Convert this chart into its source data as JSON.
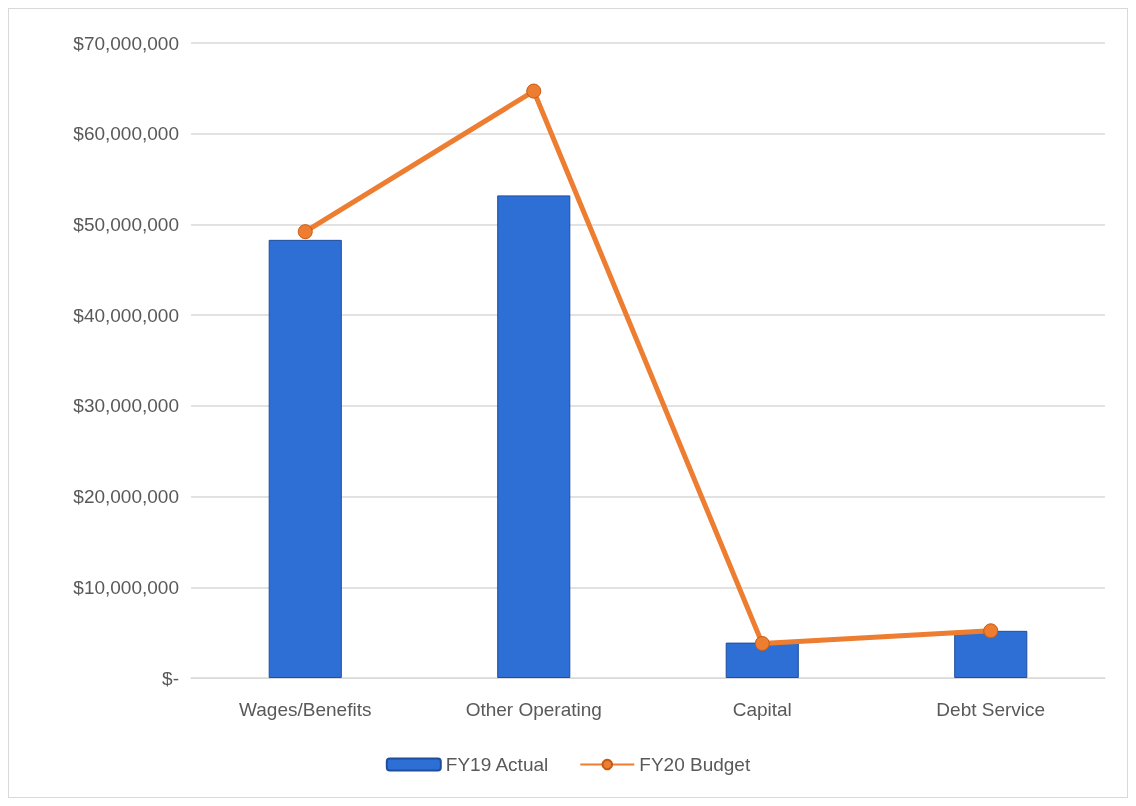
{
  "chart_data": {
    "type": "bar",
    "categories": [
      "Wages/Benefits",
      "Other Operating",
      "Capital",
      "Debt Service"
    ],
    "series": [
      {
        "name": "FY19 Actual",
        "color": "#2e6fd6",
        "values": [
          48300000,
          53200000,
          3900000,
          5200000
        ]
      },
      {
        "name": "FY20 Budget",
        "type": "line",
        "color": "#ed7d31",
        "values": [
          49200000,
          64700000,
          3800000,
          5200000
        ]
      }
    ],
    "ylim": [
      0,
      70000000
    ],
    "yticks": [
      {
        "value": 0,
        "label": "$-"
      },
      {
        "value": 10000000,
        "label": "$10,000,000"
      },
      {
        "value": 20000000,
        "label": "$20,000,000"
      },
      {
        "value": 30000000,
        "label": "$30,000,000"
      },
      {
        "value": 40000000,
        "label": "$40,000,000"
      },
      {
        "value": 50000000,
        "label": "$50,000,000"
      },
      {
        "value": 60000000,
        "label": "$60,000,000"
      },
      {
        "value": 70000000,
        "label": "$70,000,000"
      }
    ],
    "grid": "y",
    "legend": "bottom",
    "marker": "circle"
  }
}
